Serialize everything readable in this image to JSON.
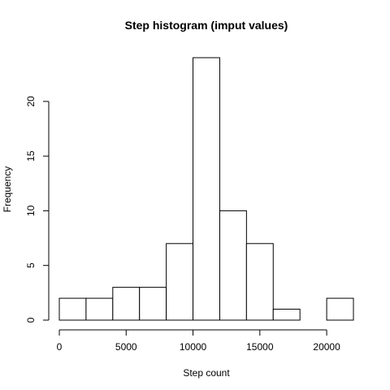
{
  "chart_data": {
    "type": "bar",
    "title": "Step histogram (imput values)",
    "xlabel": "Step count",
    "ylabel": "Frequency",
    "bin_edges": [
      0,
      2000,
      4000,
      6000,
      8000,
      10000,
      12000,
      14000,
      16000,
      18000,
      20000,
      22000
    ],
    "values": [
      2,
      2,
      3,
      3,
      7,
      24,
      10,
      7,
      1,
      0,
      2
    ],
    "x_ticks": [
      0,
      5000,
      10000,
      15000,
      20000
    ],
    "y_ticks": [
      0,
      5,
      10,
      15,
      20
    ],
    "xlim": [
      0,
      22000
    ],
    "ylim": [
      0,
      24
    ],
    "grid": false,
    "legend": "none"
  }
}
